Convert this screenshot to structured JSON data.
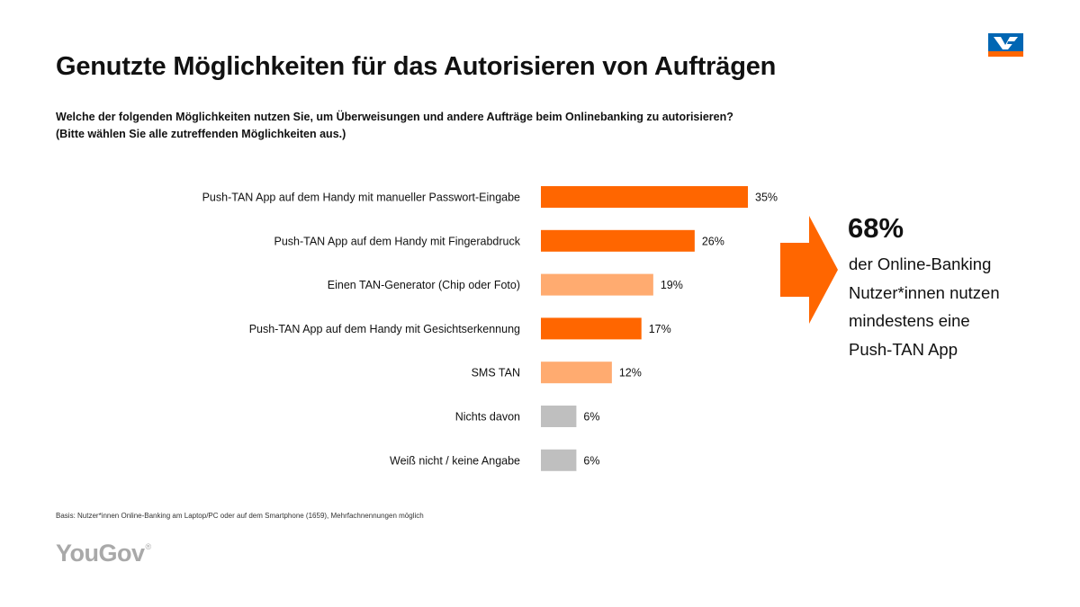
{
  "header": {
    "title": "Genutzte Möglichkeiten für das Autorisieren von Aufträgen",
    "subtitle_line1": "Welche der folgenden Möglichkeiten nutzen Sie, um Überweisungen und andere Aufträge beim Onlinebanking zu autorisieren?",
    "subtitle_line2": "(Bitte wählen Sie alle zutreffenden Möglichkeiten aus.)"
  },
  "chart_data": {
    "type": "bar",
    "orientation": "horizontal",
    "categories": [
      "Push-TAN App auf dem Handy mit manueller Passwort-Eingabe",
      "Push-TAN App auf dem Handy mit Fingerabdruck",
      "Einen TAN-Generator (Chip oder Foto)",
      "Push-TAN App auf dem Handy mit Gesichtserkennung",
      "SMS TAN",
      "Nichts davon",
      "Weiß nicht / keine Angabe"
    ],
    "values": [
      35,
      26,
      19,
      17,
      12,
      6,
      6
    ],
    "value_labels": [
      "35%",
      "26%",
      "19%",
      "17%",
      "12%",
      "6%",
      "6%"
    ],
    "bar_colors": [
      "#ff6600",
      "#ff6600",
      "#ffab70",
      "#ff6600",
      "#ffab70",
      "#bfbfbf",
      "#bfbfbf"
    ],
    "xlim": [
      0,
      35
    ],
    "grid": false,
    "legend": "none"
  },
  "callout": {
    "value": "68%",
    "lines": [
      "der Online-Banking",
      "Nutzer*innen nutzen",
      "mindestens eine",
      "Push-TAN App"
    ],
    "arrow_color": "#ff6600"
  },
  "footnote": "Basis: Nutzer*innen Online-Banking am Laptop/PC oder auf dem Smartphone (1659), Mehrfachnennungen möglich",
  "branding": {
    "yougov_text": "YouGov",
    "yougov_mark": "®",
    "bank_logo_colors": [
      "#0066b3",
      "#ff6600"
    ]
  }
}
